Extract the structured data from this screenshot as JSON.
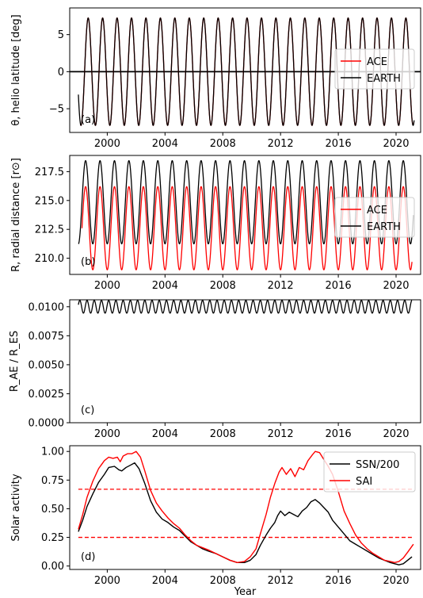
{
  "chart_data": [
    {
      "panel_tag": "(a)",
      "type": "line",
      "ylabel": "θ, helio latitude [deg]",
      "xlim": [
        1997.4,
        2021.7
      ],
      "ylim": [
        -8.2,
        8.6
      ],
      "xticks": [
        2000,
        2004,
        2008,
        2012,
        2016,
        2020
      ],
      "xtick_labels": [
        "2000",
        "2004",
        "2008",
        "2012",
        "2016",
        "2020"
      ],
      "yticks": [
        -5,
        0,
        5
      ],
      "ytick_labels": [
        "−5",
        "0",
        "5"
      ],
      "hline": {
        "y": 0,
        "color": "#000000",
        "style": "solid"
      },
      "legend_position": "right",
      "series": [
        {
          "name": "ACE",
          "color": "#ff0000",
          "kind": "sine",
          "x_start": 1998.15,
          "x_end": 2021.15,
          "mean": 0,
          "amplitude": 7.25,
          "period": 1.0,
          "peak_at": 1998.68,
          "amp_mod": 0
        },
        {
          "name": "EARTH",
          "color": "#000000",
          "kind": "sine",
          "x_start": 1998.0,
          "x_end": 2021.25,
          "mean": 0,
          "amplitude": 7.25,
          "period": 1.0,
          "peak_at": 1998.68,
          "amp_mod": 0
        }
      ]
    },
    {
      "panel_tag": "(b)",
      "type": "line",
      "ylabel": "R, radial distance [r⊙]",
      "xlim": [
        1997.4,
        2021.7
      ],
      "ylim": [
        208.6,
        218.9
      ],
      "xticks": [
        2000,
        2004,
        2008,
        2012,
        2016,
        2020
      ],
      "xtick_labels": [
        "2000",
        "2004",
        "2008",
        "2012",
        "2016",
        "2020"
      ],
      "yticks": [
        210.0,
        212.5,
        215.0,
        217.5
      ],
      "ytick_labels": [
        "210.0",
        "212.5",
        "215.0",
        "217.5"
      ],
      "legend_position": "right",
      "series": [
        {
          "name": "ACE",
          "color": "#ff0000",
          "kind": "sine",
          "x_start": 1998.25,
          "x_end": 2021.1,
          "mean": 212.6,
          "amplitude": 3.6,
          "period": 1.0,
          "peak_at": 1998.5,
          "amp_mod": 0
        },
        {
          "name": "EARTH",
          "color": "#000000",
          "kind": "sine",
          "x_start": 1998.0,
          "x_end": 2021.2,
          "mean": 214.85,
          "amplitude": 3.6,
          "period": 1.0,
          "peak_at": 1998.5,
          "amp_mod": 0
        }
      ]
    },
    {
      "panel_tag": "(c)",
      "type": "line",
      "ylabel": "R_AE / R_ES",
      "xlim": [
        1997.4,
        2021.7
      ],
      "ylim": [
        0,
        0.0106
      ],
      "xticks": [
        2000,
        2004,
        2008,
        2012,
        2016,
        2020
      ],
      "xtick_labels": [
        "2000",
        "2004",
        "2008",
        "2012",
        "2016",
        "2020"
      ],
      "yticks": [
        0,
        0.0025,
        0.005,
        0.0075,
        0.01
      ],
      "ytick_labels": [
        "0.0000",
        "0.0025",
        "0.0050",
        "0.0075",
        "0.0100"
      ],
      "series": [
        {
          "name": "",
          "color": "#000000",
          "kind": "sine",
          "x_start": 1998.0,
          "x_end": 2021.1,
          "mean": 0.01,
          "amplitude": 0.00055,
          "period": 0.5,
          "peak_at": 1998.1,
          "amp_mod": 0
        }
      ]
    },
    {
      "panel_tag": "(d)",
      "type": "line",
      "ylabel": "Solar activity",
      "xlabel": "Year",
      "xlim": [
        1997.4,
        2021.7
      ],
      "ylim": [
        -0.03,
        1.05
      ],
      "xticks": [
        2000,
        2004,
        2008,
        2012,
        2016,
        2020
      ],
      "xtick_labels": [
        "2000",
        "2004",
        "2008",
        "2012",
        "2016",
        "2020"
      ],
      "yticks": [
        0,
        0.25,
        0.5,
        0.75,
        1.0
      ],
      "ytick_labels": [
        "0.00",
        "0.25",
        "0.50",
        "0.75",
        "1.00"
      ],
      "hlines": [
        {
          "y": 0.67,
          "x_start": 1998.0,
          "x_end": 2021.2,
          "color": "#ff0000",
          "style": "dashed"
        },
        {
          "y": 0.25,
          "x_start": 1998.0,
          "x_end": 2021.2,
          "color": "#ff0000",
          "style": "dashed"
        }
      ],
      "legend_position": "top-right",
      "series": [
        {
          "name": "SSN/200",
          "color": "#000000",
          "kind": "points",
          "x": [
            1998.0,
            1998.3,
            1998.6,
            1999.0,
            1999.4,
            1999.8,
            2000.1,
            2000.5,
            2000.8,
            2001.0,
            2001.3,
            2001.6,
            2001.9,
            2002.2,
            2002.6,
            2003.0,
            2003.4,
            2003.8,
            2004.2,
            2004.6,
            2005.0,
            2005.4,
            2005.8,
            2006.2,
            2006.6,
            2007.0,
            2007.5,
            2008.0,
            2008.5,
            2009.0,
            2009.5,
            2009.9,
            2010.3,
            2010.6,
            2011.0,
            2011.3,
            2011.6,
            2011.8,
            2012.0,
            2012.3,
            2012.6,
            2012.9,
            2013.2,
            2013.5,
            2013.8,
            2014.1,
            2014.4,
            2014.7,
            2015.0,
            2015.3,
            2015.6,
            2016.0,
            2016.4,
            2016.8,
            2017.2,
            2017.6,
            2018.0,
            2018.4,
            2018.8,
            2019.2,
            2019.6,
            2019.9,
            2020.2,
            2020.5,
            2020.8,
            2021.1
          ],
          "y": [
            0.3,
            0.4,
            0.52,
            0.63,
            0.73,
            0.8,
            0.86,
            0.87,
            0.84,
            0.83,
            0.86,
            0.88,
            0.9,
            0.85,
            0.72,
            0.57,
            0.47,
            0.41,
            0.38,
            0.34,
            0.31,
            0.26,
            0.21,
            0.18,
            0.15,
            0.13,
            0.11,
            0.08,
            0.05,
            0.03,
            0.03,
            0.05,
            0.1,
            0.18,
            0.27,
            0.33,
            0.38,
            0.44,
            0.48,
            0.44,
            0.47,
            0.45,
            0.43,
            0.48,
            0.51,
            0.56,
            0.58,
            0.55,
            0.51,
            0.47,
            0.4,
            0.34,
            0.28,
            0.22,
            0.19,
            0.16,
            0.13,
            0.1,
            0.07,
            0.05,
            0.03,
            0.02,
            0.01,
            0.02,
            0.05,
            0.08
          ]
        },
        {
          "name": "SAI",
          "color": "#ff0000",
          "kind": "points",
          "x": [
            1998.0,
            1998.3,
            1998.6,
            1999.0,
            1999.4,
            1999.8,
            2000.1,
            2000.4,
            2000.7,
            2000.9,
            2001.1,
            2001.4,
            2001.7,
            2002.0,
            2002.3,
            2002.6,
            2003.0,
            2003.4,
            2003.8,
            2004.2,
            2004.6,
            2005.0,
            2005.4,
            2005.8,
            2006.2,
            2006.6,
            2007.0,
            2007.5,
            2008.0,
            2008.5,
            2009.0,
            2009.5,
            2009.9,
            2010.3,
            2010.6,
            2011.0,
            2011.3,
            2011.6,
            2011.9,
            2012.1,
            2012.4,
            2012.7,
            2013.0,
            2013.3,
            2013.6,
            2013.9,
            2014.2,
            2014.4,
            2014.7,
            2015.0,
            2015.3,
            2015.6,
            2016.0,
            2016.4,
            2016.8,
            2017.2,
            2017.6,
            2018.0,
            2018.4,
            2018.8,
            2019.2,
            2019.6,
            2019.9,
            2020.2,
            2020.5,
            2020.8,
            2021.2
          ],
          "y": [
            0.32,
            0.45,
            0.6,
            0.74,
            0.85,
            0.92,
            0.95,
            0.94,
            0.95,
            0.91,
            0.96,
            0.98,
            0.98,
            1.0,
            0.95,
            0.83,
            0.66,
            0.55,
            0.48,
            0.42,
            0.37,
            0.33,
            0.27,
            0.22,
            0.18,
            0.16,
            0.14,
            0.11,
            0.08,
            0.05,
            0.03,
            0.04,
            0.08,
            0.15,
            0.28,
            0.45,
            0.6,
            0.72,
            0.82,
            0.86,
            0.8,
            0.85,
            0.78,
            0.86,
            0.84,
            0.92,
            0.97,
            1.0,
            0.99,
            0.93,
            0.87,
            0.8,
            0.65,
            0.48,
            0.37,
            0.27,
            0.2,
            0.15,
            0.11,
            0.08,
            0.05,
            0.04,
            0.03,
            0.04,
            0.07,
            0.12,
            0.19
          ]
        }
      ]
    }
  ]
}
